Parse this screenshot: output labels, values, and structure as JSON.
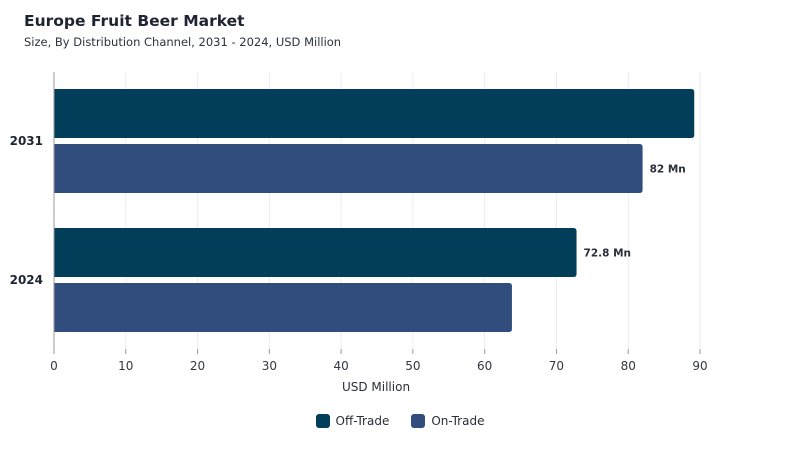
{
  "chart_data": {
    "type": "bar",
    "orientation": "horizontal",
    "title": "Europe Fruit Beer Market",
    "subtitle": "Size, By Distribution Channel, 2031 - 2024, USD Million",
    "categories": [
      "2031",
      "2024"
    ],
    "series": [
      {
        "name": "Off-Trade",
        "color": "#023d5a",
        "values": [
          89.2,
          72.8
        ],
        "labels": [
          "",
          "72.8 Mn"
        ]
      },
      {
        "name": "On-Trade",
        "color": "#304d7d",
        "values": [
          82,
          63.8
        ],
        "labels": [
          "82 Mn",
          ""
        ]
      }
    ],
    "xlabel": "USD Million",
    "ylabel": "",
    "xlim": [
      0,
      90
    ],
    "xticks": [
      "0",
      "10",
      "20",
      "30",
      "40",
      "50",
      "60",
      "70",
      "80",
      "90"
    ],
    "grid": "vertical",
    "legend_position": "bottom-center"
  }
}
